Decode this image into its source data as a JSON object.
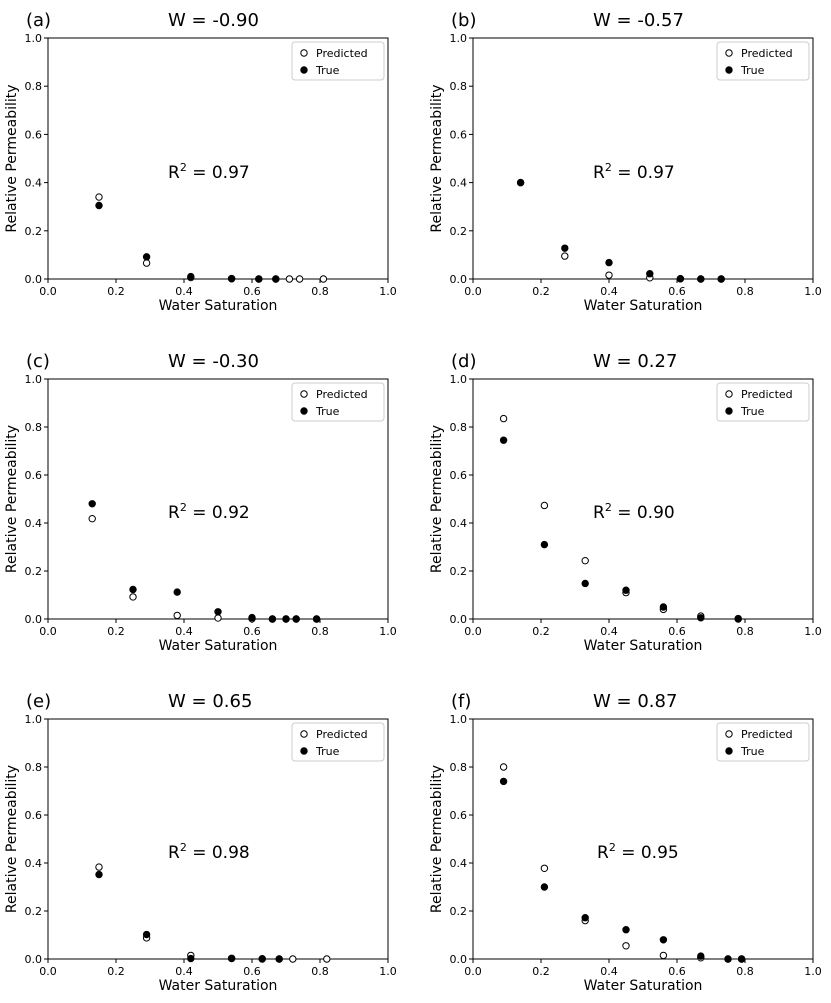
{
  "legend": {
    "predicted_label": "Predicted",
    "true_label": "True"
  },
  "chart_data": [
    {
      "type": "scatter",
      "panel": "(a)",
      "title": "W = -0.90",
      "annotation": {
        "r2_prefix": "R",
        "r2_sup": "2",
        "r2_value": " = 0.97"
      },
      "xlabel": "Water Saturation",
      "ylabel": "Relative Permeability",
      "xlim": [
        0,
        1
      ],
      "ylim": [
        0,
        1
      ],
      "xticks": [
        "0.0",
        "0.2",
        "0.4",
        "0.6",
        "0.8",
        "1.0"
      ],
      "yticks": [
        "0.0",
        "0.2",
        "0.4",
        "0.6",
        "0.8",
        "1.0"
      ],
      "grid": false,
      "legend_position": "top-right",
      "series": [
        {
          "name": "Predicted",
          "marker": "open-circle",
          "x": [
            0.15,
            0.29,
            0.42,
            0.54,
            0.62,
            0.67,
            0.71,
            0.74,
            0.81
          ],
          "y": [
            0.34,
            0.066,
            0.006,
            0.001,
            0.0,
            0.0,
            0.0,
            0.0,
            0.0
          ]
        },
        {
          "name": "True",
          "marker": "filled-circle",
          "x": [
            0.15,
            0.29,
            0.42,
            0.54,
            0.62,
            0.67
          ],
          "y": [
            0.305,
            0.092,
            0.01,
            0.002,
            0.0,
            0.0
          ]
        }
      ]
    },
    {
      "type": "scatter",
      "panel": "(b)",
      "title": "W = -0.57",
      "annotation": {
        "r2_prefix": "R",
        "r2_sup": "2",
        "r2_value": " = 0.97"
      },
      "xlabel": "Water Saturation",
      "ylabel": "Relative Permeability",
      "xlim": [
        0,
        1
      ],
      "ylim": [
        0,
        1
      ],
      "xticks": [
        "0.0",
        "0.2",
        "0.4",
        "0.6",
        "0.8",
        "1.0"
      ],
      "yticks": [
        "0.0",
        "0.2",
        "0.4",
        "0.6",
        "0.8",
        "1.0"
      ],
      "grid": false,
      "legend_position": "top-right",
      "series": [
        {
          "name": "Predicted",
          "marker": "open-circle",
          "x": [
            0.14,
            0.27,
            0.4,
            0.52,
            0.61,
            0.67,
            0.73
          ],
          "y": [
            0.4,
            0.095,
            0.016,
            0.005,
            0.001,
            0.0,
            0.0
          ]
        },
        {
          "name": "True",
          "marker": "filled-circle",
          "x": [
            0.14,
            0.27,
            0.4,
            0.52,
            0.61,
            0.67,
            0.73
          ],
          "y": [
            0.4,
            0.128,
            0.068,
            0.022,
            0.001,
            0.0,
            0.0
          ]
        }
      ]
    },
    {
      "type": "scatter",
      "panel": "(c)",
      "title": "W = -0.30",
      "annotation": {
        "r2_prefix": "R",
        "r2_sup": "2",
        "r2_value": " = 0.92"
      },
      "xlabel": "Water Saturation",
      "ylabel": "Relative Permeability",
      "xlim": [
        0,
        1
      ],
      "ylim": [
        0,
        1
      ],
      "xticks": [
        "0.0",
        "0.2",
        "0.4",
        "0.6",
        "0.8",
        "1.0"
      ],
      "yticks": [
        "0.0",
        "0.2",
        "0.4",
        "0.6",
        "0.8",
        "1.0"
      ],
      "grid": false,
      "legend_position": "top-right",
      "series": [
        {
          "name": "Predicted",
          "marker": "open-circle",
          "x": [
            0.13,
            0.25,
            0.38,
            0.5,
            0.6,
            0.66,
            0.7,
            0.73,
            0.79
          ],
          "y": [
            0.418,
            0.092,
            0.015,
            0.004,
            0.001,
            0.0,
            0.0,
            0.0,
            0.0
          ]
        },
        {
          "name": "True",
          "marker": "filled-circle",
          "x": [
            0.13,
            0.25,
            0.38,
            0.5,
            0.6,
            0.66,
            0.7,
            0.73,
            0.79
          ],
          "y": [
            0.48,
            0.123,
            0.112,
            0.03,
            0.006,
            0.0,
            0.0,
            0.0,
            0.0
          ]
        }
      ]
    },
    {
      "type": "scatter",
      "panel": "(d)",
      "title": "W = 0.27",
      "annotation": {
        "r2_prefix": "R",
        "r2_sup": "2",
        "r2_value": " = 0.90"
      },
      "xlabel": "Water Saturation",
      "ylabel": "Relative Permeability",
      "xlim": [
        0,
        1
      ],
      "ylim": [
        0,
        1
      ],
      "xticks": [
        "0.0",
        "0.2",
        "0.4",
        "0.6",
        "0.8",
        "1.0"
      ],
      "yticks": [
        "0.0",
        "0.2",
        "0.4",
        "0.6",
        "0.8",
        "1.0"
      ],
      "grid": false,
      "legend_position": "top-right",
      "series": [
        {
          "name": "Predicted",
          "marker": "open-circle",
          "x": [
            0.09,
            0.21,
            0.33,
            0.45,
            0.56,
            0.67,
            0.78
          ],
          "y": [
            0.835,
            0.473,
            0.243,
            0.11,
            0.04,
            0.012,
            0.0
          ]
        },
        {
          "name": "True",
          "marker": "filled-circle",
          "x": [
            0.09,
            0.21,
            0.33,
            0.45,
            0.56,
            0.67,
            0.78
          ],
          "y": [
            0.745,
            0.31,
            0.148,
            0.12,
            0.05,
            0.005,
            0.002
          ]
        }
      ]
    },
    {
      "type": "scatter",
      "panel": "(e)",
      "title": "W = 0.65",
      "annotation": {
        "r2_prefix": "R",
        "r2_sup": "2",
        "r2_value": " = 0.98"
      },
      "xlabel": "Water Saturation",
      "ylabel": "Relative Permeability",
      "xlim": [
        0,
        1
      ],
      "ylim": [
        0,
        1
      ],
      "xticks": [
        "0.0",
        "0.2",
        "0.4",
        "0.6",
        "0.8",
        "1.0"
      ],
      "yticks": [
        "0.0",
        "0.2",
        "0.4",
        "0.6",
        "0.8",
        "1.0"
      ],
      "grid": false,
      "legend_position": "top-right",
      "series": [
        {
          "name": "Predicted",
          "marker": "open-circle",
          "x": [
            0.15,
            0.29,
            0.42,
            0.54,
            0.63,
            0.68,
            0.72,
            0.82
          ],
          "y": [
            0.383,
            0.088,
            0.015,
            0.003,
            0.001,
            0.0,
            0.0,
            0.0
          ]
        },
        {
          "name": "True",
          "marker": "filled-circle",
          "x": [
            0.15,
            0.29,
            0.42,
            0.54,
            0.63,
            0.68
          ],
          "y": [
            0.352,
            0.102,
            0.002,
            0.002,
            0.0,
            0.0
          ]
        }
      ]
    },
    {
      "type": "scatter",
      "panel": "(f)",
      "title": "W = 0.87",
      "annotation": {
        "r2_prefix": "R",
        "r2_sup": "2",
        "r2_value": " = 0.95"
      },
      "xlabel": "Water Saturation",
      "ylabel": "Relative Permeability",
      "xlim": [
        0,
        1
      ],
      "ylim": [
        0,
        1
      ],
      "xticks": [
        "0.0",
        "0.2",
        "0.4",
        "0.6",
        "0.8",
        "1.0"
      ],
      "yticks": [
        "0.0",
        "0.2",
        "0.4",
        "0.6",
        "0.8",
        "1.0"
      ],
      "grid": false,
      "legend_position": "top-right",
      "series": [
        {
          "name": "Predicted",
          "marker": "open-circle",
          "x": [
            0.09,
            0.21,
            0.33,
            0.45,
            0.56,
            0.67,
            0.75,
            0.79
          ],
          "y": [
            0.8,
            0.378,
            0.16,
            0.055,
            0.015,
            0.005,
            0.0,
            0.0
          ]
        },
        {
          "name": "True",
          "marker": "filled-circle",
          "x": [
            0.09,
            0.21,
            0.33,
            0.45,
            0.56,
            0.67,
            0.75,
            0.79
          ],
          "y": [
            0.74,
            0.3,
            0.172,
            0.122,
            0.08,
            0.012,
            0.0,
            0.0
          ]
        }
      ]
    }
  ]
}
